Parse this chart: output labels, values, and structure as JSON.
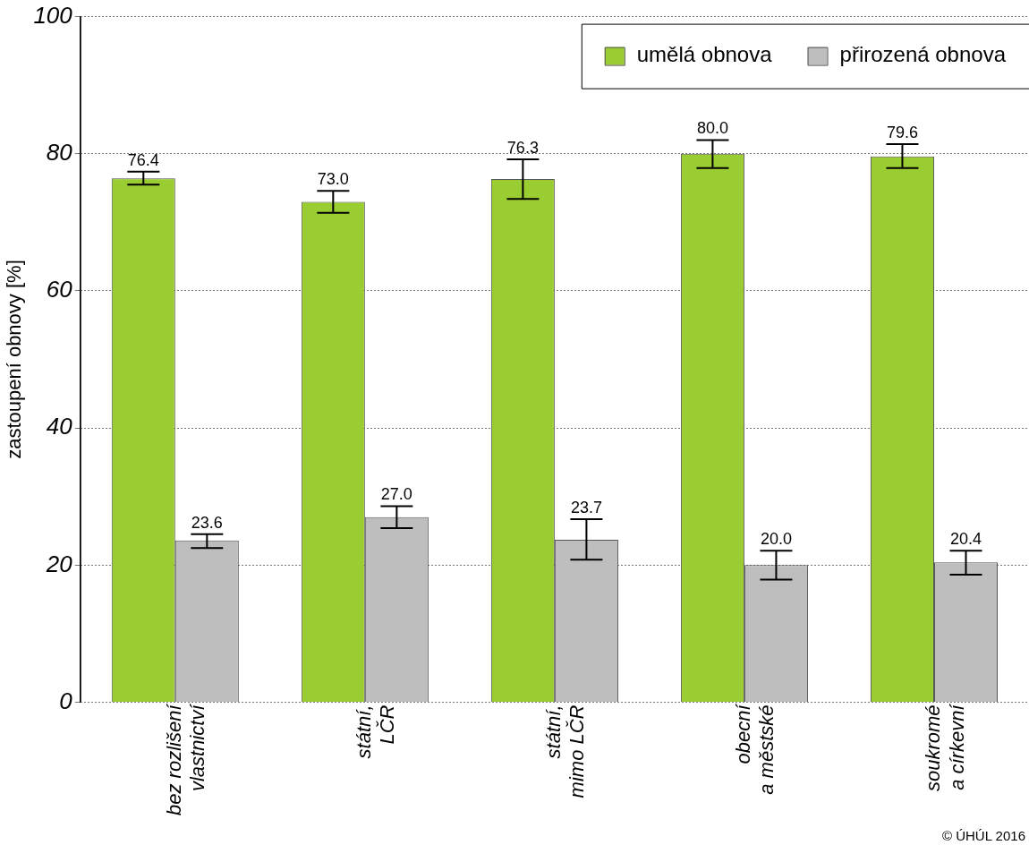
{
  "chart_data": {
    "type": "bar",
    "ylabel": "zastoupení obnovy [%]",
    "categories": [
      "bez rozlišení\nvlastnictví",
      "státní,\nLČR",
      "státní,\nmimo LČR",
      "obecní\na městské",
      "soukromé\na církevní"
    ],
    "series": [
      {
        "name": "umělá obnova",
        "color": "#9acd32",
        "values": [
          76.4,
          73.0,
          76.3,
          80.0,
          79.6
        ],
        "value_labels": [
          "76.4",
          "73.0",
          "76.3",
          "80.0",
          "79.6"
        ],
        "errors": [
          [
            75.5,
            77.4
          ],
          [
            71.4,
            74.6
          ],
          [
            73.4,
            79.2
          ],
          [
            77.9,
            82.0
          ],
          [
            77.9,
            81.4
          ]
        ]
      },
      {
        "name": "přirozená obnova",
        "color": "#bebebe",
        "values": [
          23.6,
          27.0,
          23.7,
          20.0,
          20.4
        ],
        "value_labels": [
          "23.6",
          "27.0",
          "23.7",
          "20.0",
          "20.4"
        ],
        "errors": [
          [
            22.5,
            24.5
          ],
          [
            25.4,
            28.6
          ],
          [
            20.8,
            26.7
          ],
          [
            17.9,
            22.1
          ],
          [
            18.6,
            22.1
          ]
        ]
      }
    ],
    "ylim": [
      0,
      100
    ],
    "yticks": [
      0,
      20,
      40,
      60,
      80,
      100
    ],
    "grid": "y",
    "legend": "top right",
    "annotations": [
      "© ÚHÚL 2016"
    ]
  }
}
